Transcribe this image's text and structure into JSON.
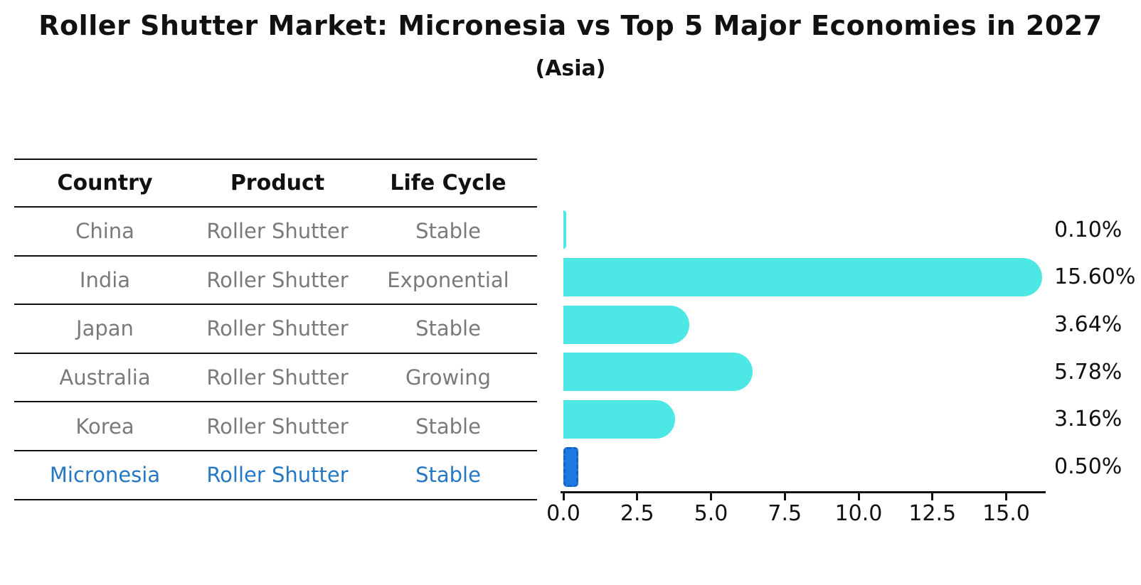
{
  "title": "Roller Shutter Market: Micronesia vs Top 5 Major Economies in 2027",
  "subtitle": "(Asia)",
  "table": {
    "headers": [
      "Country",
      "Product",
      "Life Cycle"
    ],
    "rows": [
      {
        "country": "China",
        "product": "Roller Shutter",
        "life_cycle": "Stable",
        "highlight": false
      },
      {
        "country": "India",
        "product": "Roller Shutter",
        "life_cycle": "Exponential",
        "highlight": false
      },
      {
        "country": "Japan",
        "product": "Roller Shutter",
        "life_cycle": "Stable",
        "highlight": false
      },
      {
        "country": "Australia",
        "product": "Roller Shutter",
        "life_cycle": "Growing",
        "highlight": false
      },
      {
        "country": "Korea",
        "product": "Roller Shutter",
        "life_cycle": "Stable",
        "highlight": false
      },
      {
        "country": "Micronesia",
        "product": "Roller Shutter",
        "life_cycle": "Stable",
        "highlight": true
      }
    ]
  },
  "chart_data": {
    "type": "bar",
    "orientation": "horizontal",
    "title": "Roller Shutter Market: Micronesia vs Top 5 Major Economies in 2027",
    "subtitle": "(Asia)",
    "categories": [
      "China",
      "India",
      "Japan",
      "Australia",
      "Korea",
      "Micronesia"
    ],
    "values": [
      0.1,
      15.6,
      3.64,
      5.78,
      3.16,
      0.5
    ],
    "value_labels": [
      "0.10%",
      "15.60%",
      "3.64%",
      "5.78%",
      "3.16%",
      "0.50%"
    ],
    "highlight_index": 5,
    "x_ticks": [
      0.0,
      2.5,
      5.0,
      7.5,
      10.0,
      12.5,
      15.0
    ],
    "x_tick_labels": [
      "0.0",
      "2.5",
      "5.0",
      "7.5",
      "10.0",
      "12.5",
      "15.0"
    ],
    "xlim": [
      0,
      16.4
    ],
    "grid": false,
    "legend": null,
    "xlabel": "",
    "ylabel": ""
  },
  "colors": {
    "title_text": "#111111",
    "table_text": "#7a7a7a",
    "highlight_text": "#2677C4",
    "bar": "#4DE8E6",
    "highlight_bar_fill": "#1E7AE0",
    "highlight_bar_border": "#1464C8",
    "axis": "#111111"
  }
}
